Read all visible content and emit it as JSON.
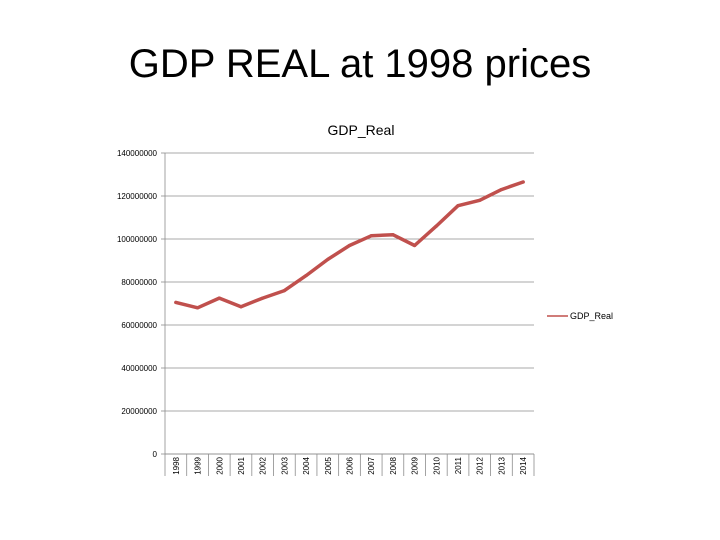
{
  "slide": {
    "title": "GDP REAL at 1998 prices"
  },
  "chart_data": {
    "type": "line",
    "title": "GDP_Real",
    "xlabel": "",
    "ylabel": "",
    "x": [
      "1998",
      "1999",
      "2000",
      "2001",
      "2002",
      "2003",
      "2004",
      "2005",
      "2006",
      "2007",
      "2008",
      "2009",
      "2010",
      "2011",
      "2012",
      "2013",
      "2014"
    ],
    "series": [
      {
        "name": "GDP_Real",
        "color": "#c0504d",
        "values": [
          70500000,
          68000000,
          72500000,
          68500000,
          72500000,
          76000000,
          83000000,
          90500000,
          97000000,
          101500000,
          102000000,
          97000000,
          106000000,
          115500000,
          118000000,
          123000000,
          126500000
        ]
      }
    ],
    "ylim": [
      0,
      140000000
    ],
    "yticks": [
      "0",
      "20000000",
      "40000000",
      "60000000",
      "80000000",
      "100000000",
      "120000000",
      "140000000"
    ],
    "grid": true,
    "legend": "right"
  }
}
